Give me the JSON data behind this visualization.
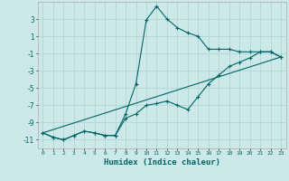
{
  "xlabel": "Humidex (Indice chaleur)",
  "background_color": "#cde8e8",
  "grid_color": "#b2d8d8",
  "line_color": "#006666",
  "xlim": [
    -0.5,
    23.5
  ],
  "ylim": [
    -12,
    5
  ],
  "xticks": [
    0,
    1,
    2,
    3,
    4,
    5,
    6,
    7,
    8,
    9,
    10,
    11,
    12,
    13,
    14,
    15,
    16,
    17,
    18,
    19,
    20,
    21,
    22,
    23
  ],
  "yticks": [
    3,
    1,
    -1,
    -3,
    -5,
    -7,
    -9,
    -11
  ],
  "series1_x": [
    0,
    1,
    2,
    3,
    4,
    5,
    6,
    7,
    8,
    9,
    10,
    11,
    12,
    13,
    14,
    15,
    16,
    17,
    18,
    19,
    20,
    21,
    22,
    23
  ],
  "series1_y": [
    -10.2,
    -10.7,
    -11.0,
    -10.5,
    -10.0,
    -10.2,
    -10.5,
    -10.5,
    -8.0,
    -4.5,
    2.9,
    4.5,
    3.0,
    2.0,
    1.4,
    1.0,
    -0.5,
    -0.5,
    -0.5,
    -0.8,
    -0.8,
    -0.8,
    -0.8,
    -1.4
  ],
  "series2_x": [
    0,
    1,
    2,
    3,
    4,
    5,
    6,
    7,
    8,
    9,
    10,
    11,
    12,
    13,
    14,
    15,
    16,
    17,
    18,
    19,
    20,
    21,
    22,
    23
  ],
  "series2_y": [
    -10.2,
    -10.7,
    -11.0,
    -10.5,
    -10.0,
    -10.2,
    -10.5,
    -10.5,
    -8.5,
    -8.0,
    -7.0,
    -6.8,
    -6.5,
    -7.0,
    -7.5,
    -6.0,
    -4.5,
    -3.5,
    -2.5,
    -2.0,
    -1.5,
    -0.8,
    -0.8,
    -1.4
  ],
  "series3_x": [
    0,
    23
  ],
  "series3_y": [
    -10.2,
    -1.4
  ]
}
